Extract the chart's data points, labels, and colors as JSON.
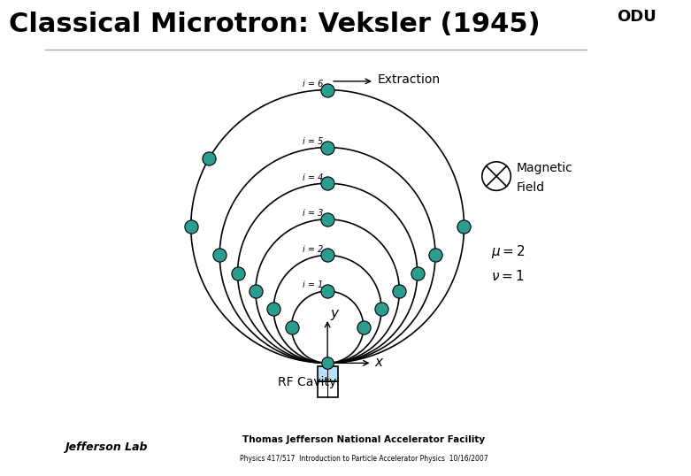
{
  "title": "Classical Microtron: Veksler (1945)",
  "title_fontsize": 22,
  "title_fontweight": "bold",
  "bg_color": "#ffffff",
  "orbit_color": "#000000",
  "dot_color": "#2a9d8f",
  "dot_edgecolor": "#000000",
  "cavity_color": "#b8e0f7",
  "cavity_edge": "#000000",
  "radii": [
    0.5,
    0.75,
    1.0,
    1.25,
    1.5,
    1.9
  ],
  "footer_color": "#c8c8c8",
  "footer_text1": "Thomas Jefferson National Accelerator Facility",
  "footer_text2": "Physics 417/517  Introduction to Particle Accelerator Physics  10/16/2007",
  "extraction_label": "Extraction",
  "rf_label": "RF Cavity",
  "mag_label1": "Magnetic",
  "mag_label2": "Field",
  "label_texts": [
    "i = 1",
    "i = 2",
    "i = 3",
    "i = 4",
    "i = 5",
    "i = 6"
  ]
}
